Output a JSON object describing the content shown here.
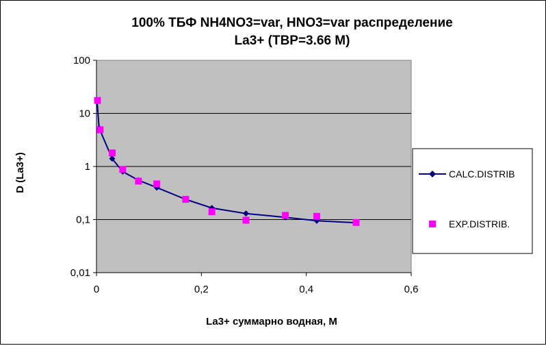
{
  "chart_data": {
    "type": "scatter",
    "title_line1": "100%  ТБФ  NH4NO3=var, HNO3=var распределение",
    "title_line2": "La3+ (TBP=3.66 M)",
    "xlabel": "La3+ суммарно  водная,  М",
    "ylabel": "D (La3+)",
    "xlim": [
      0,
      0.6
    ],
    "ylim": [
      0.01,
      100
    ],
    "y_scale": "log",
    "grid": "horizontal",
    "plot_background": "#c0c0c0",
    "legend_position": "right",
    "x_ticks": [
      "0",
      "0,2",
      "0,4",
      "0,6"
    ],
    "y_ticks": [
      "100",
      "10",
      "1",
      "0,1",
      "0,01"
    ],
    "x_tick_values": [
      0,
      0.2,
      0.4,
      0.6
    ],
    "y_tick_values": [
      100,
      10,
      1,
      0.1,
      0.01
    ],
    "series": [
      {
        "name": "CALC.DISTRIB",
        "color": "#000080",
        "marker": "diamond",
        "line": true,
        "x": [
          0.001,
          0.005,
          0.03,
          0.05,
          0.08,
          0.115,
          0.17,
          0.22,
          0.285,
          0.36,
          0.42,
          0.495
        ],
        "y": [
          17.5,
          5.3,
          1.4,
          0.8,
          0.55,
          0.4,
          0.24,
          0.165,
          0.13,
          0.11,
          0.095,
          0.087
        ]
      },
      {
        "name": "EXP.DISTRIB.",
        "color": "#ff00ff",
        "marker": "square",
        "line": false,
        "x": [
          0.002,
          0.007,
          0.03,
          0.05,
          0.08,
          0.115,
          0.17,
          0.22,
          0.285,
          0.36,
          0.42,
          0.495
        ],
        "y": [
          17.5,
          4.9,
          1.8,
          0.88,
          0.53,
          0.47,
          0.24,
          0.14,
          0.097,
          0.12,
          0.115,
          0.088
        ]
      }
    ]
  }
}
